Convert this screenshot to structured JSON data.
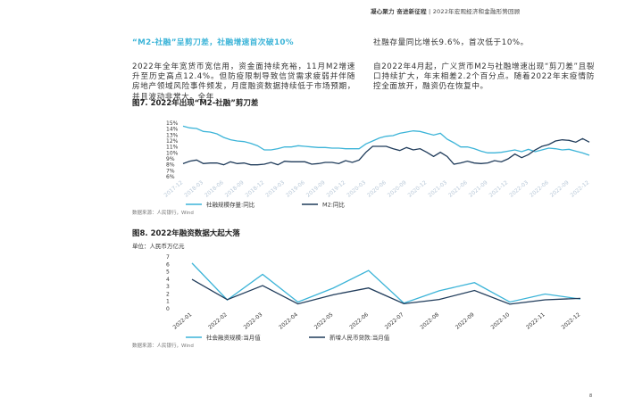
{
  "header": {
    "bold": "凝心聚力 奋进新征程",
    "sep": "|",
    "title": "2022年宏观经济和金融形势回顾"
  },
  "section": {
    "heading": "“M2-社融”呈剪刀差，社融增速首次破10%",
    "left_text": "2022年全年宽货币宽信用，资金面持续充裕，11月M2增速升至历史高点12.4%。但防疫限制导致信贷需求疲弱并伴随房地产领域风险事件频发，月度融资数据持续低于市场预期，并且波动非常大。全年",
    "right_text_1": "社融存量同比增长9.6%，首次低于10%。",
    "right_text_2": "自2022年4月起，广义货币M2与社融增速出现“剪刀差”且裂口持续扩大，年末相差2.2个百分点。随着2022年末疫情防控全面放开，融资仍在恢复中。"
  },
  "page_number": "8",
  "chart_data": [
    {
      "type": "line",
      "title": "图7. 2022年出现“M2-社融”剪刀差",
      "source": "数据来源：人民银行，Wind",
      "categories": [
        "2017-12",
        null,
        null,
        "2018-03",
        null,
        null,
        "2018-06",
        null,
        null,
        "2018-09",
        null,
        null,
        "2018-12",
        null,
        null,
        "2019-03",
        null,
        null,
        "2019-06",
        null,
        null,
        "2019-09",
        null,
        null,
        "2019-12",
        null,
        null,
        "2020-03",
        null,
        null,
        "2020-06",
        null,
        null,
        "2020-09",
        null,
        null,
        "2020-12",
        null,
        null,
        "2021-03",
        null,
        null,
        "2021-06",
        null,
        null,
        "2021-09",
        null,
        null,
        "2021-12",
        null,
        null,
        "2022-03",
        null,
        null,
        "2022-06",
        null,
        null,
        "2022-09",
        null,
        null,
        "2022-12"
      ],
      "series": [
        {
          "name": "社融规模存量:同比",
          "color": "#3cb4d8",
          "values": [
            14.5,
            14.2,
            14.1,
            13.6,
            13.5,
            13.2,
            12.6,
            12.2,
            12.0,
            11.9,
            11.6,
            11.2,
            10.5,
            10.5,
            10.7,
            11.0,
            11.0,
            11.2,
            11.1,
            11.0,
            10.9,
            10.9,
            10.8,
            10.8,
            10.7,
            10.7,
            10.7,
            11.5,
            12.0,
            12.5,
            12.8,
            12.9,
            13.3,
            13.5,
            13.7,
            13.6,
            13.3,
            13.0,
            13.3,
            12.3,
            11.7,
            11.0,
            11.0,
            10.7,
            10.3,
            10.0,
            10.0,
            10.1,
            10.3,
            10.5,
            10.2,
            10.6,
            10.2,
            10.5,
            10.8,
            10.7,
            10.5,
            10.6,
            10.3,
            10.0,
            9.6
          ]
        },
        {
          "name": "M2:同比",
          "color": "#1f3b5a",
          "values": [
            8.2,
            8.6,
            8.8,
            8.2,
            8.3,
            8.3,
            8.0,
            8.5,
            8.2,
            8.3,
            8.0,
            8.0,
            8.1,
            8.4,
            8.0,
            8.6,
            8.5,
            8.5,
            8.5,
            8.1,
            8.2,
            8.4,
            8.4,
            8.2,
            8.7,
            8.4,
            8.8,
            10.1,
            11.1,
            11.1,
            11.1,
            10.7,
            10.4,
            10.9,
            10.5,
            10.7,
            10.1,
            9.4,
            10.1,
            9.4,
            8.1,
            8.3,
            8.6,
            8.3,
            8.2,
            8.3,
            8.7,
            8.5,
            9.0,
            9.8,
            9.2,
            9.7,
            10.5,
            11.1,
            11.4,
            12.0,
            12.2,
            12.1,
            11.8,
            12.4,
            11.8
          ]
        }
      ],
      "ylim": [
        6,
        15
      ],
      "yticks": [
        {
          "value": 6,
          "label": "6%"
        },
        {
          "value": 7,
          "label": "7%"
        },
        {
          "value": 8,
          "label": "8%"
        },
        {
          "value": 9,
          "label": "9%"
        },
        {
          "value": 10,
          "label": "10%"
        },
        {
          "value": 11,
          "label": "11%"
        },
        {
          "value": 12,
          "label": "12%"
        },
        {
          "value": 13,
          "label": "13%"
        },
        {
          "value": 14,
          "label": "14%"
        },
        {
          "value": 15,
          "label": "15%"
        }
      ],
      "grid": false
    },
    {
      "type": "line",
      "title": "图8. 2022年融资数据大起大落",
      "unit": "单位：人民币万亿元",
      "source": "数据来源：人民银行，Wind",
      "categories": [
        "2022-01",
        "2022-02",
        "2022-03",
        "2022-04",
        "2022-05",
        "2022-06",
        "2022-07",
        "2022-08",
        "2022-09",
        "2022-10",
        "2022-11",
        "2022-12"
      ],
      "series": [
        {
          "name": "社会融资规模:当月值",
          "color": "#3cb4d8",
          "values": [
            6.17,
            1.19,
            4.65,
            0.91,
            2.79,
            5.17,
            0.76,
            2.43,
            3.53,
            0.91,
            1.99,
            1.31
          ]
        },
        {
          "name": "新增人民币贷款:当月值",
          "color": "#1f3b5a",
          "values": [
            3.98,
            1.23,
            3.13,
            0.65,
            1.89,
            2.81,
            0.68,
            1.25,
            2.47,
            0.62,
            1.21,
            1.4
          ]
        }
      ],
      "ylim": [
        0,
        7
      ],
      "yticks": [
        0,
        1,
        2,
        3,
        4,
        5,
        6,
        7
      ],
      "grid": false
    }
  ]
}
